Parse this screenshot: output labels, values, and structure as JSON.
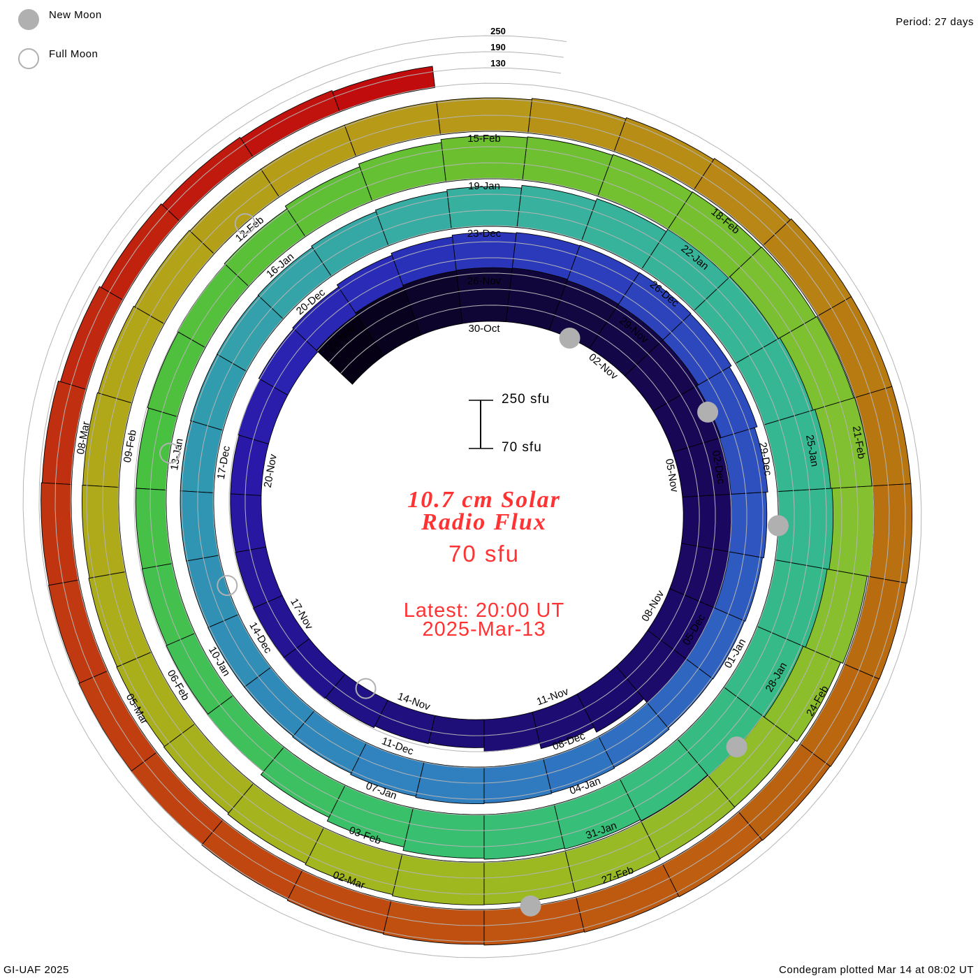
{
  "legend": {
    "new_moon": "New Moon",
    "full_moon": "Full Moon"
  },
  "period_label": "Period: 27 days",
  "footer_left": "GI-UAF 2025",
  "footer_right": "Condegram plotted Mar 14 at 08:02 UT",
  "scale_bar": {
    "top": "250 sfu",
    "bottom": "70 sfu"
  },
  "center": {
    "title_line1": "10.7 cm Solar",
    "title_line2": "Radio Flux",
    "baseline": "70 sfu",
    "latest": "Latest: 20:00 UT",
    "date": "2025-Mar-13"
  },
  "level_labels": [
    "250",
    "190",
    "130"
  ],
  "colors": {
    "text_red": "#ff3333",
    "moon": "#b0b0b0",
    "grid": "#b4b4b4"
  },
  "chart_data": {
    "type": "condegram-spiral",
    "title": "10.7 cm Solar Radio Flux",
    "units": "sfu",
    "period_days": 27,
    "baseline_sfu": 70,
    "grid_levels": [
      130,
      190,
      250
    ],
    "start_date": "2024-10-27",
    "end_date": "2025-03-13",
    "daily_flux": [
      255,
      262,
      268,
      270,
      272,
      268,
      266,
      265,
      258,
      252,
      250,
      252,
      250,
      250,
      230,
      210,
      190,
      175,
      178,
      185,
      190,
      188,
      186,
      185,
      185,
      190,
      195,
      200,
      210,
      218,
      225,
      228,
      230,
      232,
      230,
      222,
      212,
      205,
      200,
      197,
      195,
      200,
      203,
      205,
      207,
      203,
      198,
      195,
      195,
      194,
      195,
      195,
      197,
      198,
      200,
      206,
      212,
      218,
      228,
      238,
      248,
      255,
      262,
      270,
      275,
      268,
      258,
      250,
      246,
      241,
      237,
      233,
      220,
      205,
      190,
      187,
      185,
      184,
      183,
      187,
      191,
      195,
      207,
      218,
      230,
      233,
      236,
      238,
      240,
      244,
      247,
      250,
      242,
      233,
      225,
      226,
      228,
      229,
      230,
      225,
      220,
      215,
      212,
      210,
      207,
      205,
      202,
      198,
      195,
      195,
      195,
      195,
      200,
      205,
      210,
      215,
      215,
      215,
      215,
      213,
      212,
      210,
      208,
      205,
      203,
      200,
      197,
      193,
      190,
      188,
      185,
      183,
      180,
      172,
      165,
      160,
      155,
      150
    ],
    "date_labels": [
      "30-Oct",
      "02-Nov",
      "05-Nov",
      "08-Nov",
      "11-Nov",
      "14-Nov",
      "17-Nov",
      "20-Nov",
      "23-Nov",
      "26-Nov",
      "29-Nov",
      "02-Dec",
      "05-Dec",
      "08-Dec",
      "11-Dec",
      "14-Dec",
      "17-Dec",
      "20-Dec",
      "23-Dec",
      "26-Dec",
      "29-Dec",
      "01-Jan",
      "04-Jan",
      "07-Jan",
      "10-Jan",
      "13-Jan",
      "16-Jan",
      "19-Jan",
      "22-Jan",
      "25-Jan",
      "28-Jan",
      "31-Jan",
      "03-Feb",
      "06-Feb",
      "09-Feb",
      "12-Feb",
      "15-Feb",
      "18-Feb",
      "21-Feb",
      "24-Feb",
      "27-Feb",
      "02-Mar",
      "05-Mar",
      "08-Mar"
    ],
    "date_label_interval_days": 3,
    "new_moons": [
      "2024-11-01",
      "2024-12-01",
      "2024-12-30",
      "2025-01-29",
      "2025-02-28"
    ],
    "full_moons": [
      "2024-11-15",
      "2024-12-15",
      "2025-01-13",
      "2025-02-12"
    ],
    "color_stops": [
      {
        "day": 0,
        "color": "#060014"
      },
      {
        "day": 3,
        "color": "#100636"
      },
      {
        "day": 10,
        "color": "#1a0860"
      },
      {
        "day": 17,
        "color": "#1e0e78"
      },
      {
        "day": 24,
        "color": "#2a18a8"
      },
      {
        "day": 28,
        "color": "#2a2cb8"
      },
      {
        "day": 37,
        "color": "#2e55c0"
      },
      {
        "day": 44,
        "color": "#3080c0"
      },
      {
        "day": 51,
        "color": "#3098b0"
      },
      {
        "day": 57,
        "color": "#38b0a0"
      },
      {
        "day": 64,
        "color": "#35b890"
      },
      {
        "day": 71,
        "color": "#38c070"
      },
      {
        "day": 78,
        "color": "#48c040"
      },
      {
        "day": 84,
        "color": "#6cc030"
      },
      {
        "day": 91,
        "color": "#84c030"
      },
      {
        "day": 98,
        "color": "#a0b820"
      },
      {
        "day": 105,
        "color": "#b0a818"
      },
      {
        "day": 111,
        "color": "#b89818"
      },
      {
        "day": 118,
        "color": "#b87010"
      },
      {
        "day": 125,
        "color": "#c05010"
      },
      {
        "day": 132,
        "color": "#c03010"
      },
      {
        "day": 137,
        "color": "#c00c0c"
      }
    ]
  }
}
